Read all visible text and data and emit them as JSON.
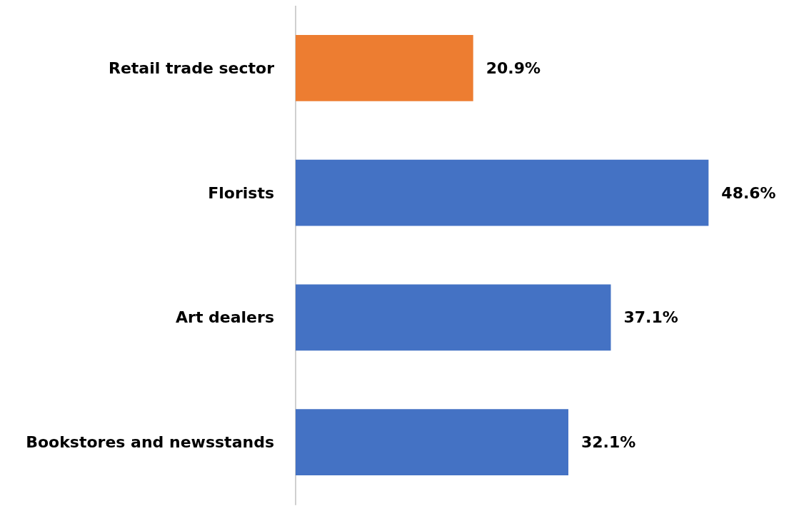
{
  "chart_data": {
    "type": "bar",
    "orientation": "horizontal",
    "categories": [
      "Retail trade sector",
      "Florists",
      "Art dealers",
      "Bookstores and newsstands"
    ],
    "values": [
      20.9,
      48.6,
      37.1,
      32.1
    ],
    "colors": [
      "#ed7d31",
      "#4472c4",
      "#4472c4",
      "#4472c4"
    ],
    "value_labels": [
      "20.9%",
      "48.6%",
      "37.1%",
      "32.1%"
    ]
  }
}
